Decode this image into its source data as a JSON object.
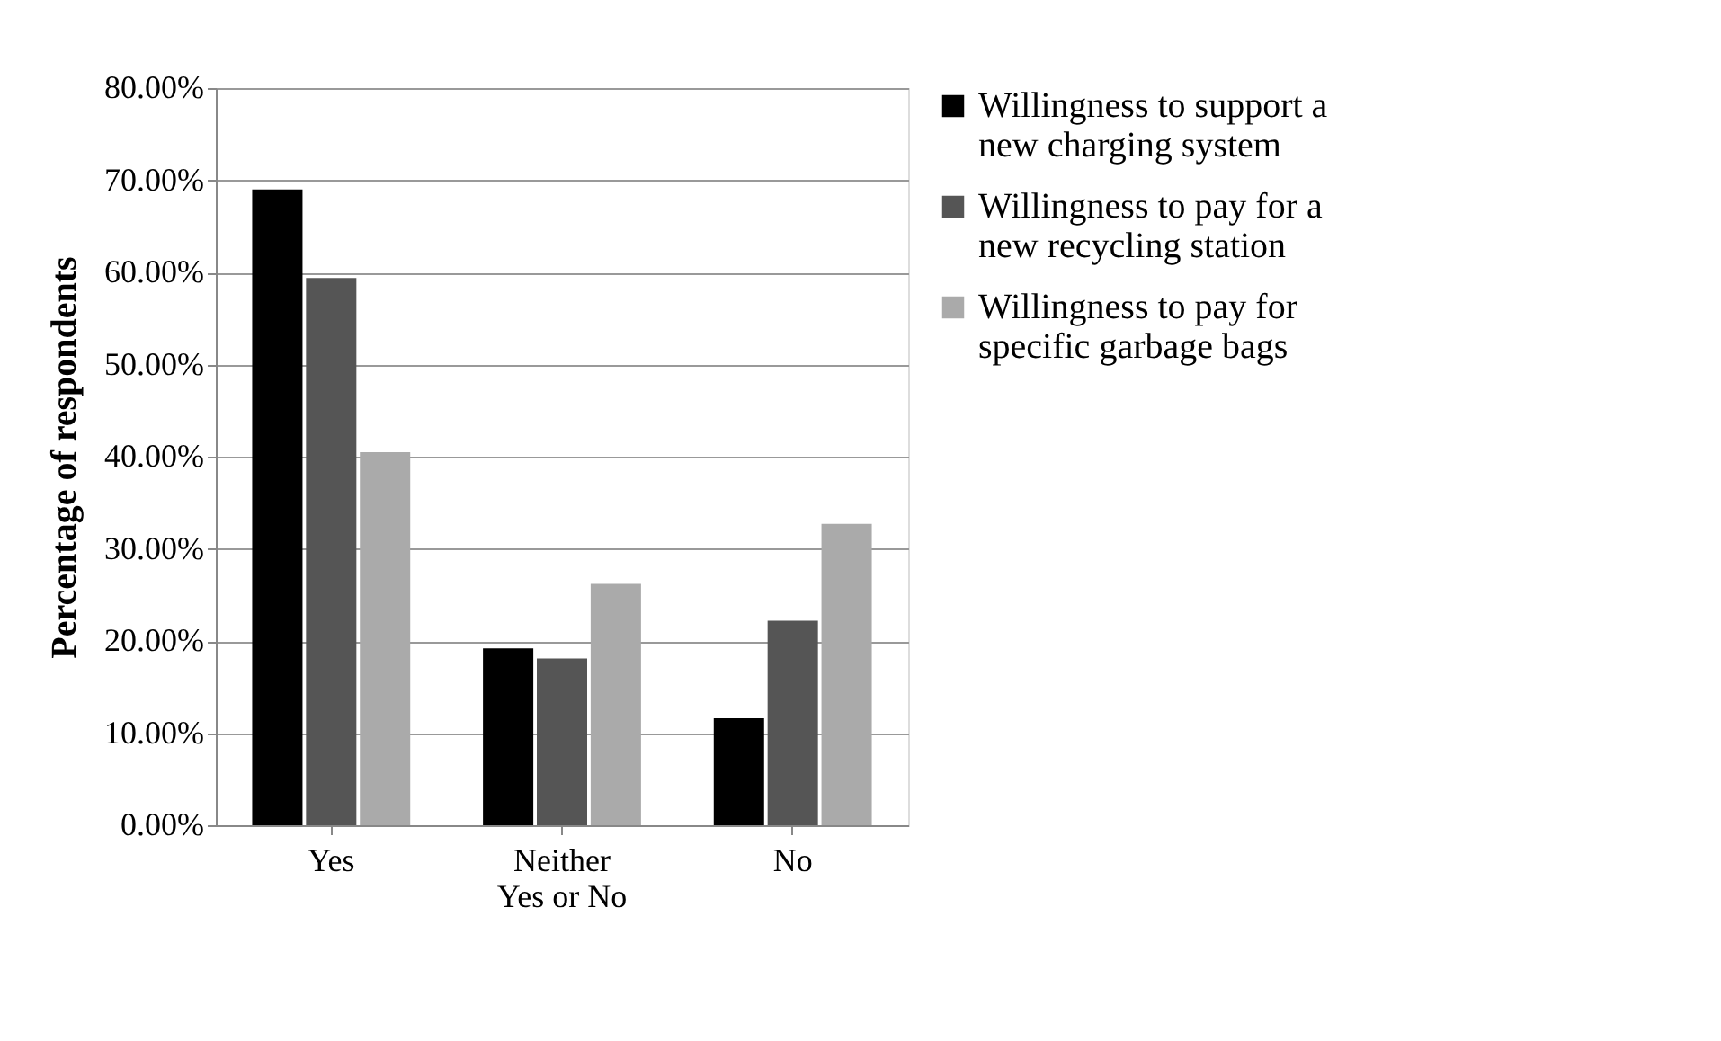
{
  "chart_data": {
    "type": "bar",
    "ylabel": "Percentage of respondents",
    "categories": [
      "Yes",
      "Neither Yes or No",
      "No"
    ],
    "series": [
      {
        "name": "Willingness to support a new charging system",
        "color": "#000000",
        "values": [
          69.0,
          19.2,
          11.6
        ]
      },
      {
        "name": "Willingness to pay for a new recycling station",
        "color": "#555555",
        "values": [
          59.4,
          18.1,
          22.2
        ]
      },
      {
        "name": "Willingness to pay for specific garbage bags",
        "color": "#aaaaaa",
        "values": [
          40.5,
          26.2,
          32.7
        ]
      }
    ],
    "ylim": [
      0,
      80
    ],
    "yticks": [
      {
        "value": 0,
        "label": "0.00%"
      },
      {
        "value": 10,
        "label": "10.00%"
      },
      {
        "value": 20,
        "label": "20.00%"
      },
      {
        "value": 30,
        "label": "30.00%"
      },
      {
        "value": 40,
        "label": "40.00%"
      },
      {
        "value": 50,
        "label": "50.00%"
      },
      {
        "value": 60,
        "label": "60.00%"
      },
      {
        "value": 70,
        "label": "70.00%"
      },
      {
        "value": 80,
        "label": "80.00%"
      }
    ],
    "grid": "y",
    "legend": "right"
  }
}
